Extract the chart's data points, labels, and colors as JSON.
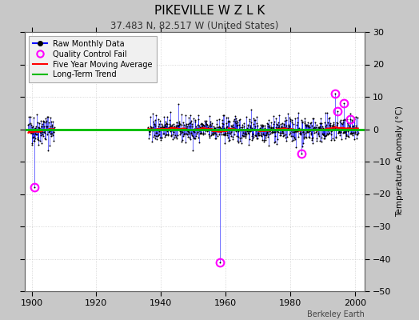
{
  "title": "PIKEVILLE W Z L K",
  "subtitle": "37.483 N, 82.517 W (United States)",
  "ylabel": "Temperature Anomaly (°C)",
  "credit": "Berkeley Earth",
  "xlim": [
    1898,
    2003
  ],
  "ylim": [
    -50,
    30
  ],
  "yticks": [
    -50,
    -40,
    -30,
    -20,
    -10,
    0,
    10,
    20,
    30
  ],
  "xticks": [
    1900,
    1920,
    1940,
    1960,
    1980,
    2000
  ],
  "fig_bg_color": "#c8c8c8",
  "plot_bg_color": "#ffffff",
  "raw_line_color": "#0000ff",
  "dot_color": "#000000",
  "qc_color": "#ff00ff",
  "moving_avg_color": "#ff0000",
  "trend_color": "#00bb00",
  "data_seed": 42,
  "qc_fail_points": [
    [
      1900.75,
      -18.0
    ],
    [
      1958.3,
      -41.0
    ],
    [
      1983.5,
      -7.5
    ],
    [
      1993.8,
      11.0
    ],
    [
      1994.5,
      5.5
    ],
    [
      1996.5,
      8.0
    ],
    [
      1998.5,
      3.0
    ]
  ],
  "gap_start": 1907.0,
  "gap_end": 1936.0,
  "data_start": 1899.0,
  "data_end": 2001.0,
  "early_std": 2.5,
  "late_std": 2.0,
  "late_std_early": 1.8
}
